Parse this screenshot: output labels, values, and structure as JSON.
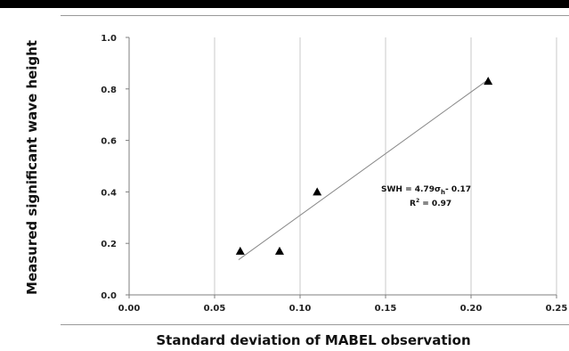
{
  "chart_data": {
    "type": "scatter",
    "title": "",
    "xlabel": "Standard deviation of MABEL observation",
    "ylabel": "Measured significant wave height",
    "xlim": [
      0.0,
      0.25
    ],
    "ylim": [
      0.0,
      1.0
    ],
    "x_ticks": [
      "0.00",
      "0.05",
      "0.10",
      "0.15",
      "0.20",
      "0.25"
    ],
    "y_ticks": [
      "0.0",
      "0.2",
      "0.4",
      "0.6",
      "0.8",
      "1.0"
    ],
    "grid": "vertical",
    "marker": "triangle",
    "colors": {
      "points": "#000000",
      "fit_line": "#888888",
      "grid": "#c8c8c8",
      "axis": "#7f7f7f"
    },
    "points": [
      {
        "x": 0.065,
        "y": 0.17
      },
      {
        "x": 0.088,
        "y": 0.17
      },
      {
        "x": 0.11,
        "y": 0.4
      },
      {
        "x": 0.21,
        "y": 0.83
      }
    ],
    "fit_line": {
      "x_start": 0.064,
      "x_end": 0.21,
      "slope": 4.79,
      "intercept": -0.17
    },
    "annotation": {
      "eq_prefix": "SWH = 4.79σ",
      "eq_sub": "h",
      "eq_suffix": "- 0.17",
      "r2_prefix": "R",
      "r2_sup": "2",
      "r2_suffix": " = 0.97"
    }
  }
}
